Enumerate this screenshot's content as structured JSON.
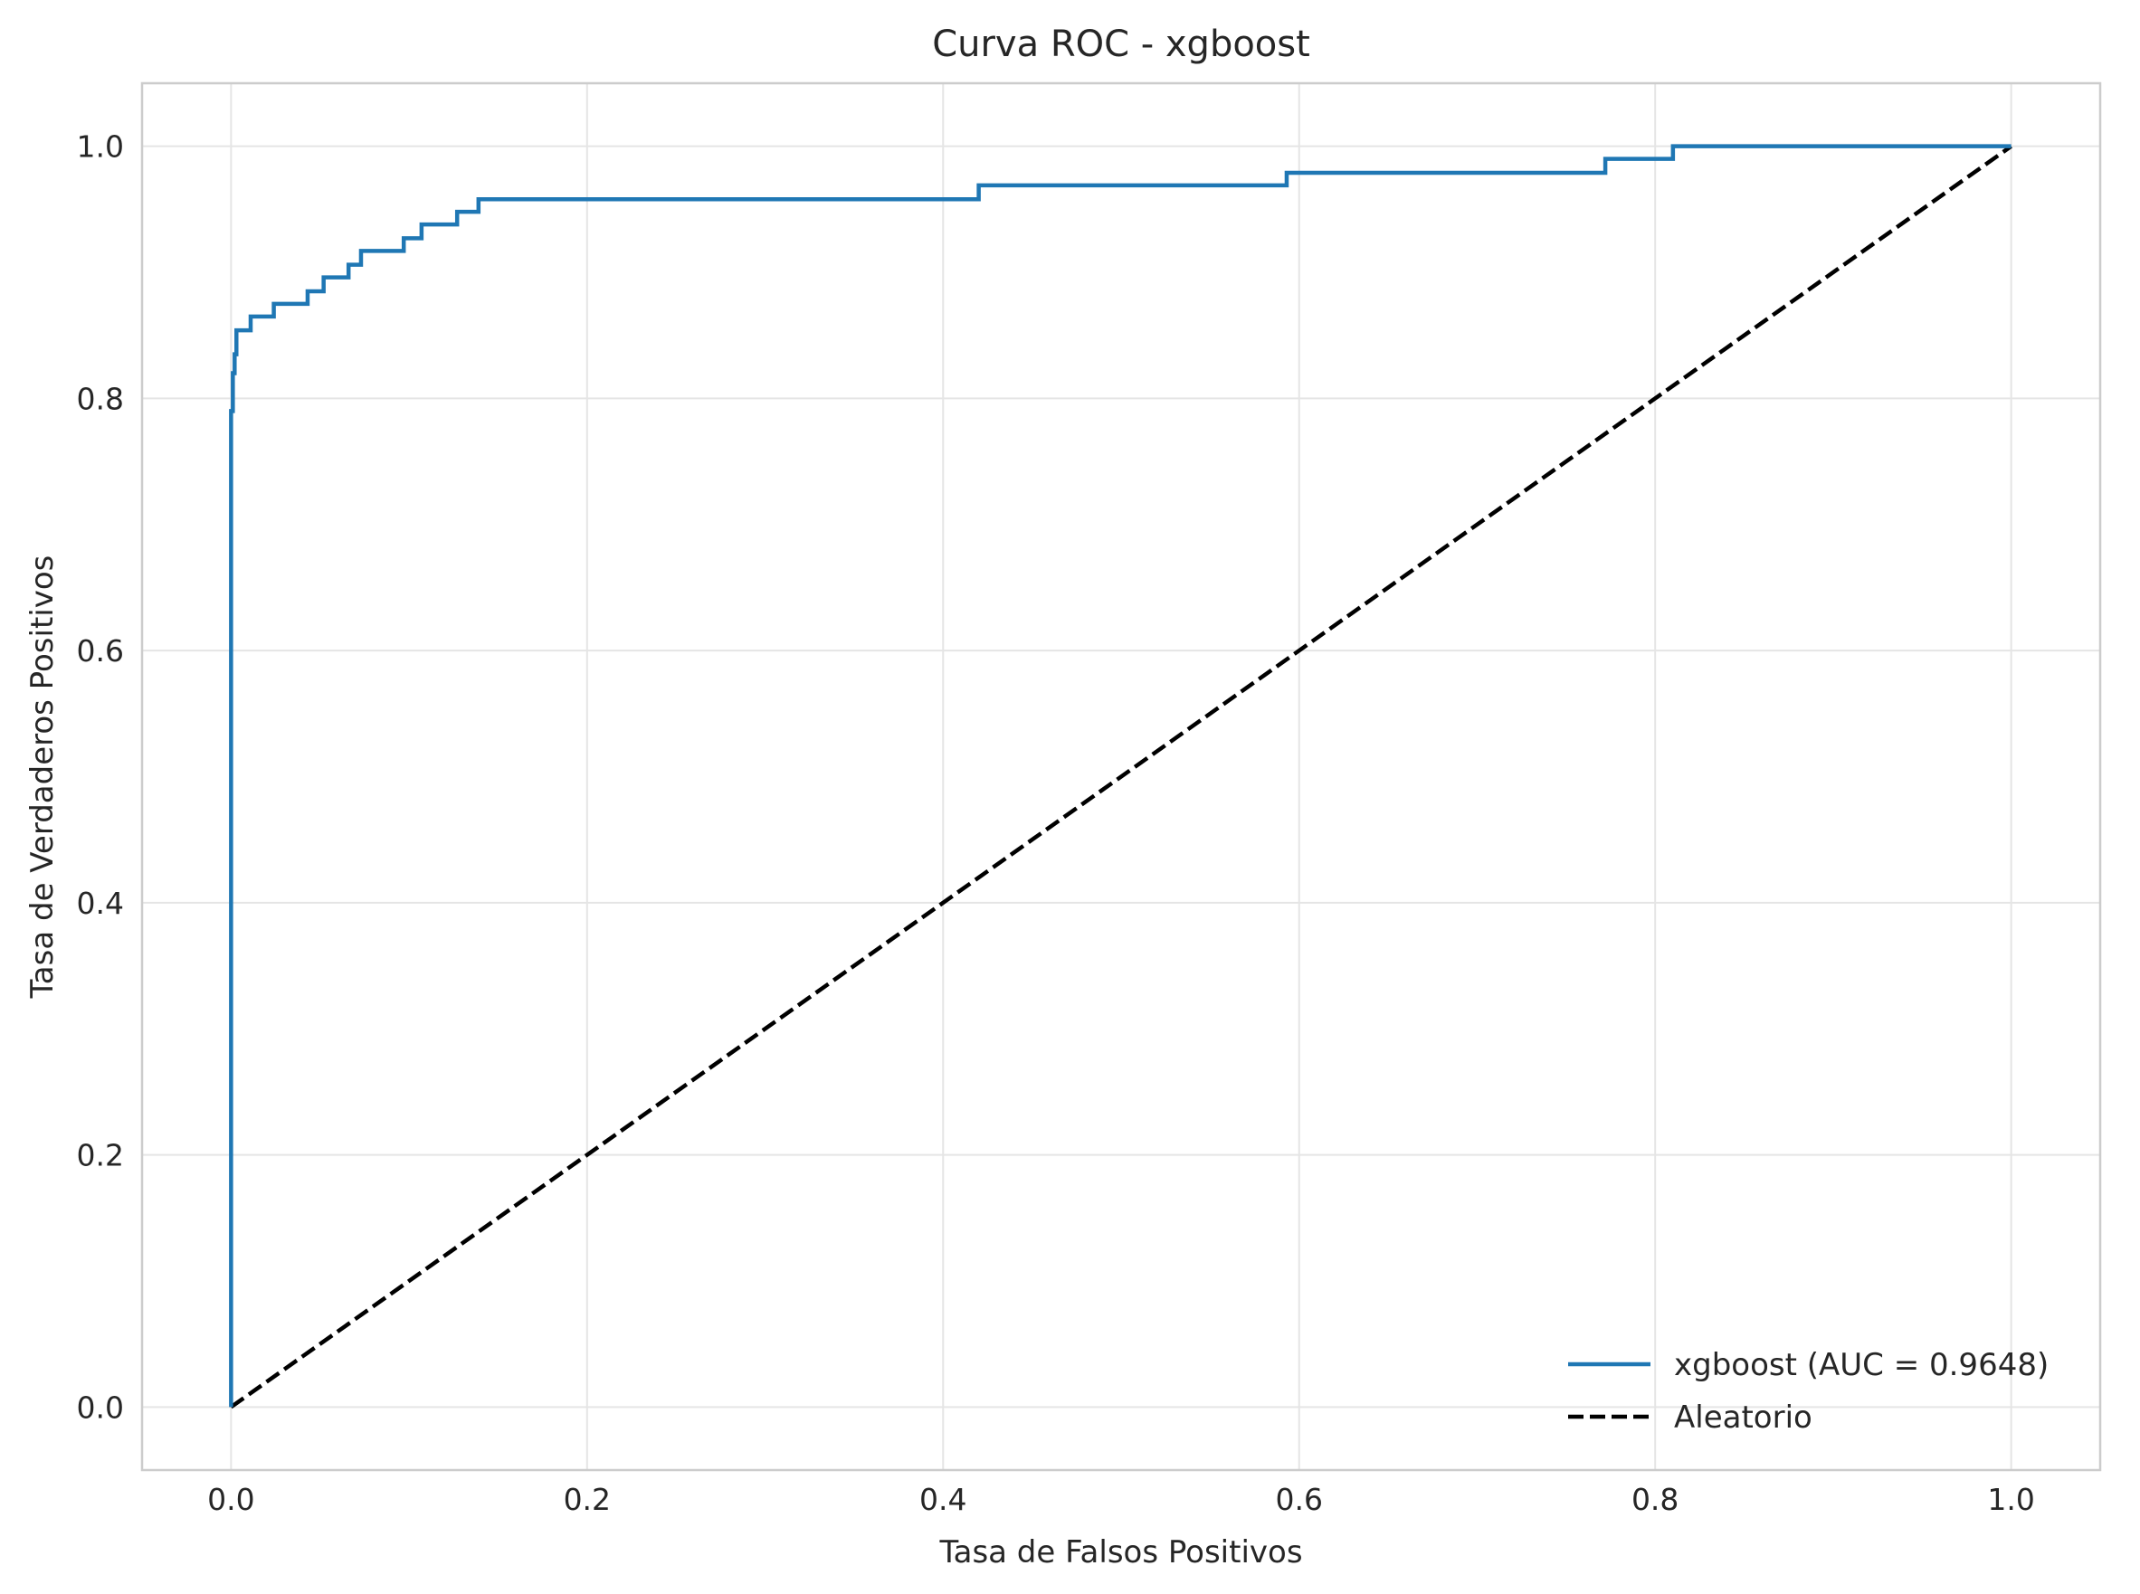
{
  "chart_data": {
    "type": "line",
    "title": "Curva ROC - xgboost",
    "xlabel": "Tasa de Falsos Positivos",
    "ylabel": "Tasa de Verdaderos Positivos",
    "xlim": [
      -0.05,
      1.05
    ],
    "ylim": [
      -0.05,
      1.05
    ],
    "xticks": [
      0.0,
      0.2,
      0.4,
      0.6,
      0.8,
      1.0
    ],
    "yticks": [
      0.0,
      0.2,
      0.4,
      0.6,
      0.8,
      1.0
    ],
    "xtick_labels": [
      "0.0",
      "0.2",
      "0.4",
      "0.6",
      "0.8",
      "1.0"
    ],
    "ytick_labels": [
      "0.0",
      "0.2",
      "0.4",
      "0.6",
      "0.8",
      "1.0"
    ],
    "grid": true,
    "legend_position": "lower-right",
    "series": [
      {
        "name": "xgboost (AUC = 0.9648)",
        "style": "solid",
        "color": "#1f77b4",
        "x": [
          0.0,
          0.0,
          0.001,
          0.001,
          0.002,
          0.002,
          0.003,
          0.003,
          0.011,
          0.011,
          0.024,
          0.024,
          0.043,
          0.043,
          0.052,
          0.052,
          0.066,
          0.066,
          0.073,
          0.073,
          0.097,
          0.097,
          0.107,
          0.107,
          0.127,
          0.127,
          0.139,
          0.139,
          0.42,
          0.42,
          0.593,
          0.593,
          0.772,
          0.772,
          0.81,
          0.81,
          1.0
        ],
        "y": [
          0.0,
          0.79,
          0.79,
          0.82,
          0.82,
          0.835,
          0.835,
          0.854,
          0.854,
          0.865,
          0.865,
          0.875,
          0.875,
          0.885,
          0.885,
          0.896,
          0.896,
          0.906,
          0.906,
          0.917,
          0.917,
          0.927,
          0.927,
          0.938,
          0.938,
          0.948,
          0.948,
          0.958,
          0.958,
          0.969,
          0.969,
          0.979,
          0.979,
          0.99,
          0.99,
          1.0,
          1.0
        ]
      },
      {
        "name": "Aleatorio",
        "style": "dashed",
        "color": "#000000",
        "x": [
          0.0,
          1.0
        ],
        "y": [
          0.0,
          1.0
        ]
      }
    ]
  }
}
